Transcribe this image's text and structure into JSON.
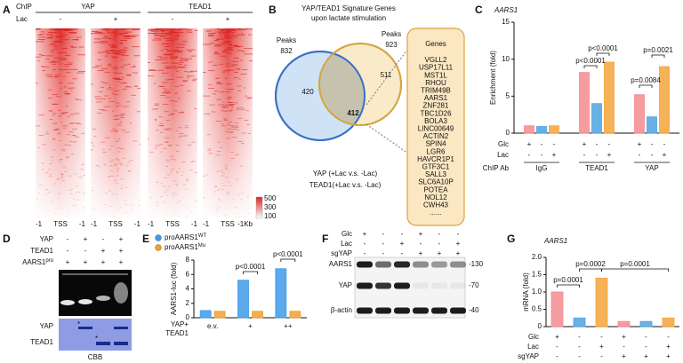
{
  "panels": {
    "A": {
      "letter": "A",
      "chip_label": "ChIP",
      "lac_label": "Lac",
      "groups": [
        "YAP",
        "TEAD1"
      ],
      "lac_signs": [
        "-",
        "+",
        "-",
        "+"
      ],
      "axis_labels": [
        [
          "-1",
          "TSS",
          "-1"
        ],
        [
          "-1",
          "TSS",
          "-1"
        ],
        [
          "-1",
          "TSS",
          "-1"
        ],
        [
          "-1",
          "TSS",
          "-1Kb"
        ]
      ],
      "colorbar_ticks": [
        500,
        300,
        100
      ]
    },
    "B": {
      "letter": "B",
      "title": [
        "YAP/TEAD1 Signature Genes",
        "upon lactate stimulation"
      ],
      "peaks": [
        {
          "label": "Peaks",
          "count": 832
        },
        {
          "label": "Peaks",
          "count": 923
        }
      ],
      "overlap": {
        "yap_only": 420,
        "both": 412,
        "tead1_only": 511
      },
      "legend": [
        "YAP (+Lac v.s. -Lac)",
        "TEAD1(+Lac v.s. -Lac)"
      ],
      "genes_title": "Genes",
      "genes": [
        "VGLL2",
        "USP17L11",
        "MST1L",
        "RHOU",
        "TRIM49B",
        {
          "name": "AARS1",
          "color": "#e8503a"
        },
        "ZNF281",
        "TBC1D26",
        "BOLA3",
        "LINC00649",
        "ACTIN2",
        "SPIN4",
        "LGR6",
        "HAVCR1P1",
        "GTF3C1",
        "SALL3",
        "SLC6A10P",
        "POTEA",
        "NOL12",
        "CWH43",
        "......"
      ]
    },
    "D": {
      "letter": "D",
      "rows": [
        {
          "label": "YAP",
          "signs": [
            "-",
            "+",
            "-",
            "+"
          ]
        },
        {
          "label": "TEAD1",
          "signs": [
            "-",
            "-",
            "+",
            "+"
          ]
        },
        {
          "label": "AARS1",
          "superscript": "pro",
          "signs": [
            "+",
            "+",
            "+",
            "+"
          ]
        }
      ],
      "cbb_labels": [
        "YAP",
        "TEAD1"
      ],
      "stars": [
        "*",
        "*"
      ],
      "stain": "CBB"
    },
    "F": {
      "letter": "F",
      "rows": [
        {
          "label": "Glc",
          "signs": [
            "+",
            "-",
            "-",
            "+",
            "-",
            "-"
          ]
        },
        {
          "label": "Lac",
          "signs": [
            "-",
            "-",
            "+",
            "-",
            "-",
            "+"
          ]
        },
        {
          "label": "sgYAP",
          "signs": [
            "-",
            "-",
            "-",
            "+",
            "+",
            "+"
          ]
        }
      ],
      "blots": [
        "AARS1",
        "YAP",
        "β-actin"
      ],
      "markers": [
        "-130",
        "-70",
        "-40"
      ]
    }
  },
  "chart_data": [
    {
      "panel": "C",
      "type": "bar",
      "title": "AARS1",
      "y_label": "Enrichment (fold)",
      "ylim": [
        0,
        15
      ],
      "yticks": [
        0,
        5,
        10,
        15
      ],
      "values": [
        1.0,
        0.9,
        1.0,
        8.2,
        4.0,
        9.6,
        5.2,
        2.2,
        9.0
      ],
      "colors": [
        "#f28b8f",
        "#4ea3e0",
        "#f5a43a",
        "#f28b8f",
        "#4ea3e0",
        "#f5a43a",
        "#f28b8f",
        "#4ea3e0",
        "#f5a43a"
      ],
      "conditions": [
        {
          "label": "Glc",
          "signs": [
            "+",
            "-",
            "-",
            "+",
            "-",
            "-",
            "+",
            "-",
            "-"
          ]
        },
        {
          "label": "Lac",
          "signs": [
            "-",
            "-",
            "+",
            "-",
            "-",
            "+",
            "-",
            "-",
            "+"
          ]
        }
      ],
      "group_label": "ChIP Ab",
      "groups": [
        "IgG",
        "TEAD1",
        "YAP"
      ],
      "annotations": [
        "p<0.0001",
        "p<0.0001",
        "p=0.0084",
        "p=0.0021"
      ]
    },
    {
      "panel": "E",
      "type": "grouped_bar",
      "y_label": "AARS1-luc (fold)",
      "ylim": [
        0,
        8
      ],
      "yticks": [
        0,
        2,
        4,
        6,
        8
      ],
      "categories": [
        "e.v.",
        "+",
        "++"
      ],
      "x_label": [
        "YAP+",
        "TEAD1"
      ],
      "series": [
        {
          "name": "proAARS1",
          "superscript": "WT",
          "color": "#3d9be9",
          "values": [
            1.0,
            5.2,
            6.8
          ]
        },
        {
          "name": "proAARS1",
          "superscript": "Mu",
          "color": "#f0a030",
          "values": [
            0.9,
            0.9,
            0.9
          ]
        }
      ],
      "annotations": [
        "p<0.0001",
        "p<0.0001"
      ]
    },
    {
      "panel": "G",
      "type": "bar",
      "title": "AARS1",
      "y_label": "mRNA (fold)",
      "ylim": [
        0,
        2
      ],
      "yticks": [
        0,
        0.5,
        {
          "value": 1,
          "label": "1.0"
        },
        1.5,
        {
          "value": 2,
          "label": "2.0"
        }
      ],
      "values": [
        1.0,
        0.25,
        1.4,
        0.15,
        0.15,
        0.25
      ],
      "colors": [
        "#f28b8f",
        "#4ea3e0",
        "#f5a43a",
        "#f28b8f",
        "#4ea3e0",
        "#f5a43a"
      ],
      "conditions": [
        {
          "label": "Glc",
          "signs": [
            "+",
            "-",
            "-",
            "+",
            "-",
            "-"
          ]
        },
        {
          "label": "Lac",
          "signs": [
            "-",
            "-",
            "+",
            "-",
            "-",
            "+"
          ]
        },
        {
          "label": "sgYAP",
          "signs": [
            "-",
            "-",
            "-",
            "+",
            "+",
            "+"
          ]
        }
      ],
      "annotations": [
        "p=0.0001",
        "p=0.0002",
        "p=0.0001"
      ]
    }
  ]
}
